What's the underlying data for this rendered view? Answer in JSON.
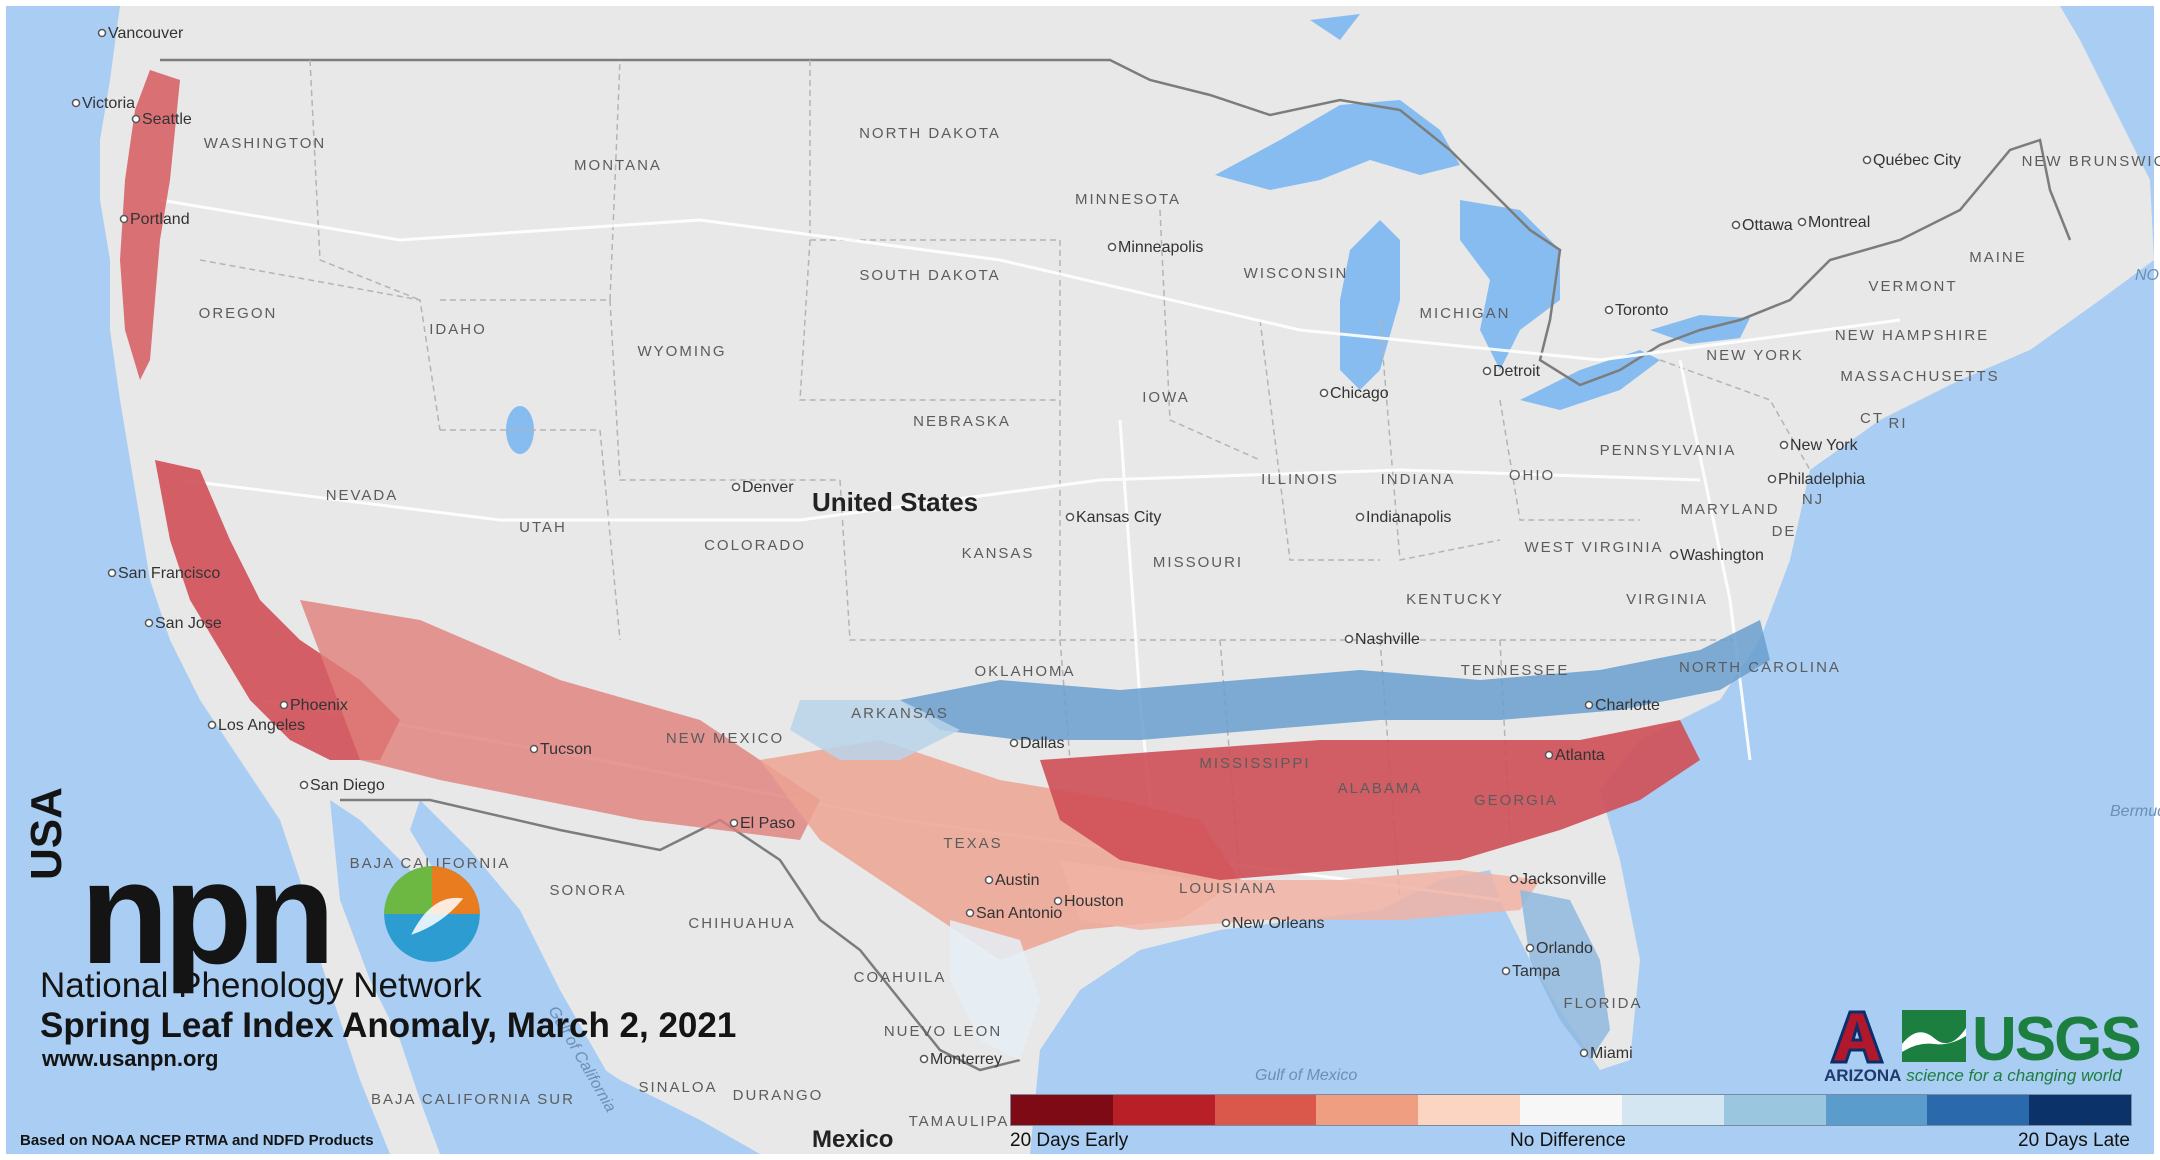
{
  "map": {
    "country_label": "United States",
    "neighbor_country": "Mexico",
    "state_labels": [
      {
        "name": "WASHINGTON"
      },
      {
        "name": "MONTANA"
      },
      {
        "name": "NORTH DAKOTA"
      },
      {
        "name": "MINNESOTA"
      },
      {
        "name": "SOUTH DAKOTA"
      },
      {
        "name": "WISCONSIN"
      },
      {
        "name": "MICHIGAN"
      },
      {
        "name": "OREGON"
      },
      {
        "name": "IDAHO"
      },
      {
        "name": "WYOMING"
      },
      {
        "name": "NEBRASKA"
      },
      {
        "name": "IOWA"
      },
      {
        "name": "NEVADA"
      },
      {
        "name": "UTAH"
      },
      {
        "name": "COLORADO"
      },
      {
        "name": "KANSAS"
      },
      {
        "name": "MISSOURI"
      },
      {
        "name": "ILLINOIS"
      },
      {
        "name": "INDIANA"
      },
      {
        "name": "OHIO"
      },
      {
        "name": "PENNSYLVANIA"
      },
      {
        "name": "NEW YORK"
      },
      {
        "name": "VERMONT"
      },
      {
        "name": "NEW HAMPSHIRE"
      },
      {
        "name": "MASSACHUSETTS"
      },
      {
        "name": "MAINE"
      },
      {
        "name": "KENTUCKY"
      },
      {
        "name": "WEST VIRGINIA"
      },
      {
        "name": "VIRGINIA"
      },
      {
        "name": "MARYLAND"
      },
      {
        "name": "OKLAHOMA"
      },
      {
        "name": "TENNESSEE"
      },
      {
        "name": "NORTH CAROLINA"
      },
      {
        "name": "NEW MEXICO"
      },
      {
        "name": "ARKANSAS"
      },
      {
        "name": "MISSISSIPPI"
      },
      {
        "name": "ALABAMA"
      },
      {
        "name": "GEORGIA"
      },
      {
        "name": "TEXAS"
      },
      {
        "name": "LOUISIANA"
      },
      {
        "name": "FLORIDA"
      },
      {
        "name": "SONORA"
      },
      {
        "name": "CHIHUAHUA"
      },
      {
        "name": "COAHUILA"
      },
      {
        "name": "NUEVO LEON"
      },
      {
        "name": "BAJA CALIFORNIA"
      },
      {
        "name": "BAJA CALIFORNIA SUR"
      },
      {
        "name": "SINALOA"
      },
      {
        "name": "DURANGO"
      },
      {
        "name": "TAMAULIPAS"
      },
      {
        "name": "NEW BRUNSWICK"
      },
      {
        "name": "CT"
      },
      {
        "name": "RI"
      },
      {
        "name": "NJ"
      },
      {
        "name": "DE"
      }
    ],
    "city_labels": [
      {
        "name": "Vancouver"
      },
      {
        "name": "Victoria"
      },
      {
        "name": "Seattle"
      },
      {
        "name": "Portland"
      },
      {
        "name": "San Francisco"
      },
      {
        "name": "San Jose"
      },
      {
        "name": "Los Angeles"
      },
      {
        "name": "San Diego"
      },
      {
        "name": "Denver"
      },
      {
        "name": "Kansas City"
      },
      {
        "name": "Minneapolis"
      },
      {
        "name": "Chicago"
      },
      {
        "name": "Detroit"
      },
      {
        "name": "Toronto"
      },
      {
        "name": "Ottawa"
      },
      {
        "name": "Montreal"
      },
      {
        "name": "Québec City"
      },
      {
        "name": "Indianapolis"
      },
      {
        "name": "Nashville"
      },
      {
        "name": "New York"
      },
      {
        "name": "Philadelphia"
      },
      {
        "name": "Washington"
      },
      {
        "name": "Charlotte"
      },
      {
        "name": "Atlanta"
      },
      {
        "name": "Jacksonville"
      },
      {
        "name": "Orlando"
      },
      {
        "name": "Tampa"
      },
      {
        "name": "Miami"
      },
      {
        "name": "Houston"
      },
      {
        "name": "San Antonio"
      },
      {
        "name": "Austin"
      },
      {
        "name": "New Orleans"
      },
      {
        "name": "Monterrey"
      },
      {
        "name": "El Paso"
      },
      {
        "name": "Tucson"
      },
      {
        "name": "Phoenix"
      },
      {
        "name": "Dallas"
      }
    ],
    "water_labels": [
      {
        "name": "Gulf of California"
      },
      {
        "name": "Gulf of Mexico"
      },
      {
        "name": "Bermuda"
      },
      {
        "name": "NO"
      }
    ]
  },
  "branding": {
    "logo_letters": "npn",
    "logo_prefix": "USA",
    "org_name": "National Phenology Network",
    "title": "Spring Leaf Index Anomaly, March 2, 2021",
    "website": "www.usanpn.org",
    "source_note": "Based on NOAA NCEP RTMA and NDFD Products",
    "partner_1": "ARIZONA",
    "partner_2": "USGS",
    "partner_tagline": "science for a changing world"
  },
  "legend": {
    "swatches": [
      "#7d0a14",
      "#b81f26",
      "#d9584b",
      "#f09e82",
      "#fbd5c1",
      "#f7f7f7",
      "#d4e6f2",
      "#9bc6e0",
      "#5a9ccb",
      "#2a69ab",
      "#0b3369"
    ],
    "label_left": "20 Days Early",
    "label_center": "No Difference",
    "label_right": "20 Days Late"
  },
  "colors": {
    "ocean": "#a9cdf3",
    "land": "#e7e7e7",
    "lake": "#86bcf0",
    "early": "#d4505a",
    "late": "#5f98cc"
  }
}
